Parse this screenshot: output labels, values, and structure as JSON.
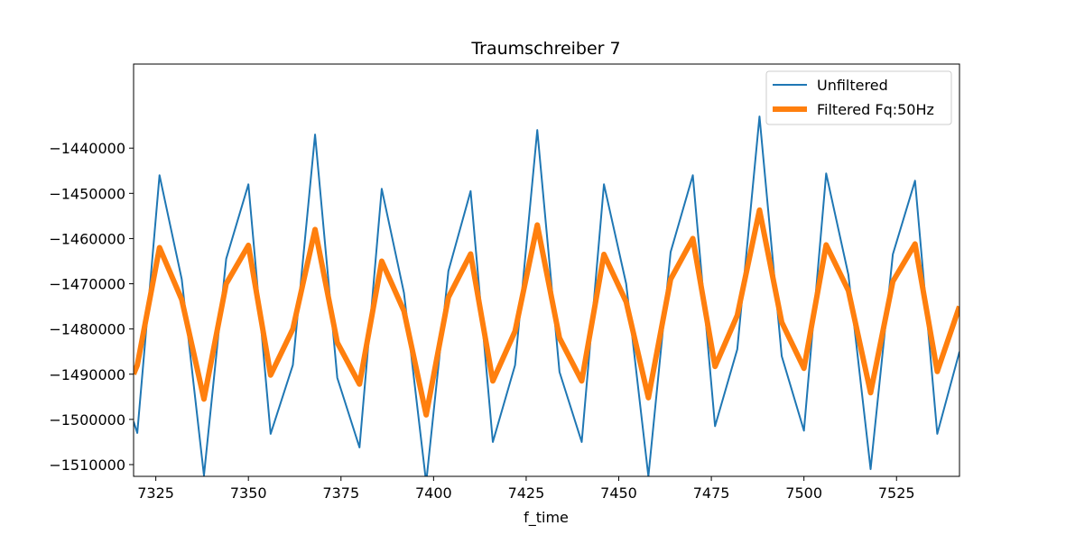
{
  "chart_data": {
    "type": "line",
    "title": "Traumschreiber 7",
    "xlabel": "f_time",
    "ylabel": "",
    "xlim": [
      7319,
      7542
    ],
    "ylim": [
      -1512600,
      -1421400
    ],
    "xticks": [
      7325,
      7350,
      7375,
      7400,
      7425,
      7450,
      7475,
      7500,
      7525
    ],
    "xtick_labels": [
      "7325",
      "7350",
      "7375",
      "7400",
      "7425",
      "7450",
      "7475",
      "7500",
      "7525"
    ],
    "yticks": [
      -1440000,
      -1450000,
      -1460000,
      -1470000,
      -1480000,
      -1490000,
      -1500000,
      -1510000
    ],
    "ytick_labels": [
      "−1440000",
      "−1450000",
      "−1460000",
      "−1470000",
      "−1480000",
      "−1490000",
      "−1500000",
      "−1510000"
    ],
    "grid": false,
    "legend_position": "top-right",
    "series": [
      {
        "name": "Unfiltered",
        "color": "#1f77b4",
        "x": [
          7319,
          7320,
          7326,
          7332,
          7338,
          7344,
          7350,
          7356,
          7362,
          7368,
          7374,
          7380,
          7386,
          7392,
          7398,
          7404,
          7410,
          7416,
          7422,
          7428,
          7434,
          7440,
          7446,
          7452,
          7458,
          7464,
          7470,
          7476,
          7482,
          7488,
          7494,
          7500,
          7506,
          7512,
          7518,
          7524,
          7530,
          7536,
          7542
        ],
        "y": [
          -1500500,
          -1503000,
          -1446000,
          -1469000,
          -1512400,
          -1464500,
          -1448000,
          -1503200,
          -1488000,
          -1437000,
          -1490800,
          -1506200,
          -1449000,
          -1472000,
          -1514000,
          -1467200,
          -1449500,
          -1505000,
          -1488000,
          -1436000,
          -1489500,
          -1505000,
          -1448000,
          -1470000,
          -1512600,
          -1463000,
          -1446000,
          -1501500,
          -1484500,
          -1433000,
          -1486000,
          -1502500,
          -1445600,
          -1468000,
          -1511000,
          -1463500,
          -1447200,
          -1503200,
          -1485000
        ]
      },
      {
        "name": "Filtered Fq:50Hz",
        "color": "#ff7f0e",
        "x": [
          7319,
          7320,
          7326,
          7332,
          7338,
          7344,
          7350,
          7356,
          7362,
          7368,
          7374,
          7380,
          7386,
          7392,
          7398,
          7404,
          7410,
          7416,
          7422,
          7428,
          7434,
          7440,
          7446,
          7452,
          7458,
          7464,
          7470,
          7476,
          7482,
          7488,
          7494,
          7500,
          7506,
          7512,
          7518,
          7524,
          7530,
          7536,
          7542
        ],
        "y": [
          -1490000,
          -1488000,
          -1462000,
          -1473500,
          -1495500,
          -1470000,
          -1461500,
          -1490200,
          -1480000,
          -1458000,
          -1483000,
          -1492200,
          -1465000,
          -1476000,
          -1499000,
          -1473000,
          -1463400,
          -1491500,
          -1480500,
          -1457000,
          -1482000,
          -1491500,
          -1463500,
          -1474000,
          -1495200,
          -1469000,
          -1460000,
          -1488300,
          -1477000,
          -1453700,
          -1478500,
          -1488700,
          -1461400,
          -1471500,
          -1494100,
          -1469500,
          -1461200,
          -1489400,
          -1475000
        ]
      }
    ]
  }
}
